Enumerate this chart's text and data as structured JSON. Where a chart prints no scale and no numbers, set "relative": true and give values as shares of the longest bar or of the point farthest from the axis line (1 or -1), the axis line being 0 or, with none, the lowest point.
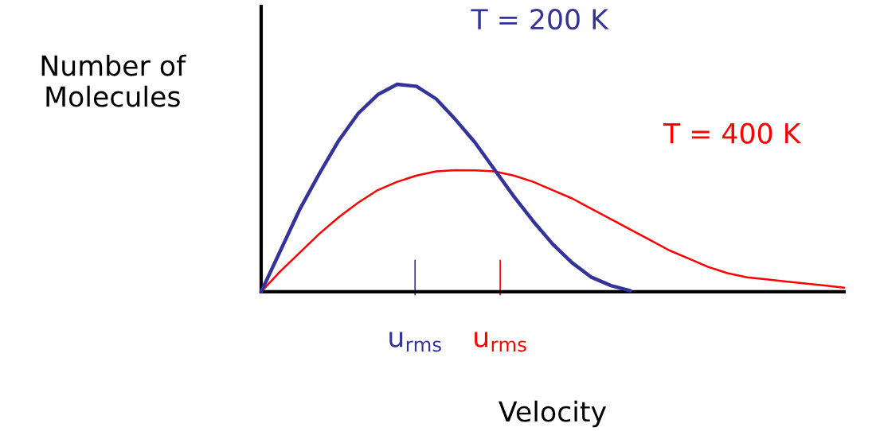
{
  "chart_data": {
    "type": "line",
    "relative": true,
    "xlabel": "Velocity",
    "ylabel": "Number of\nMolecules",
    "tick_labels": "x",
    "legend": false,
    "grid": false,
    "marker": "none",
    "line_style": "solid",
    "categories": [
      null,
      null,
      null,
      null,
      null,
      null,
      null,
      null,
      null,
      null,
      null,
      null,
      null,
      null,
      null,
      null,
      null,
      null,
      null,
      null,
      null,
      null,
      null,
      null,
      null,
      null,
      null,
      null,
      null,
      null,
      null
    ],
    "annotations": [
      "u$_{rms}$",
      "u$_{rms}$"
    ],
    "series": [
      {
        "name": "T = 200 K",
        "color": "#333399",
        "values": [
          0,
          0.2,
          0.4,
          0.57,
          0.73,
          0.86,
          0.95,
          1.0,
          0.99,
          0.93,
          0.83,
          0.72,
          0.59,
          0.46,
          0.34,
          0.23,
          0.14,
          0.07,
          0.03,
          0.005,
          null,
          null,
          null,
          null,
          null,
          null,
          null,
          null,
          null,
          null,
          null
        ]
      },
      {
        "name": "T = 400 K",
        "color": "#ff0000",
        "values": [
          0,
          0.1,
          0.19,
          0.28,
          0.36,
          0.43,
          0.49,
          0.53,
          0.56,
          0.58,
          0.586,
          0.585,
          0.58,
          0.56,
          0.53,
          0.49,
          0.45,
          0.4,
          0.35,
          0.3,
          0.25,
          0.2,
          0.16,
          0.12,
          0.09,
          0.07,
          0.06,
          0.05,
          0.04,
          0.03,
          0.02
        ]
      }
    ]
  }
}
